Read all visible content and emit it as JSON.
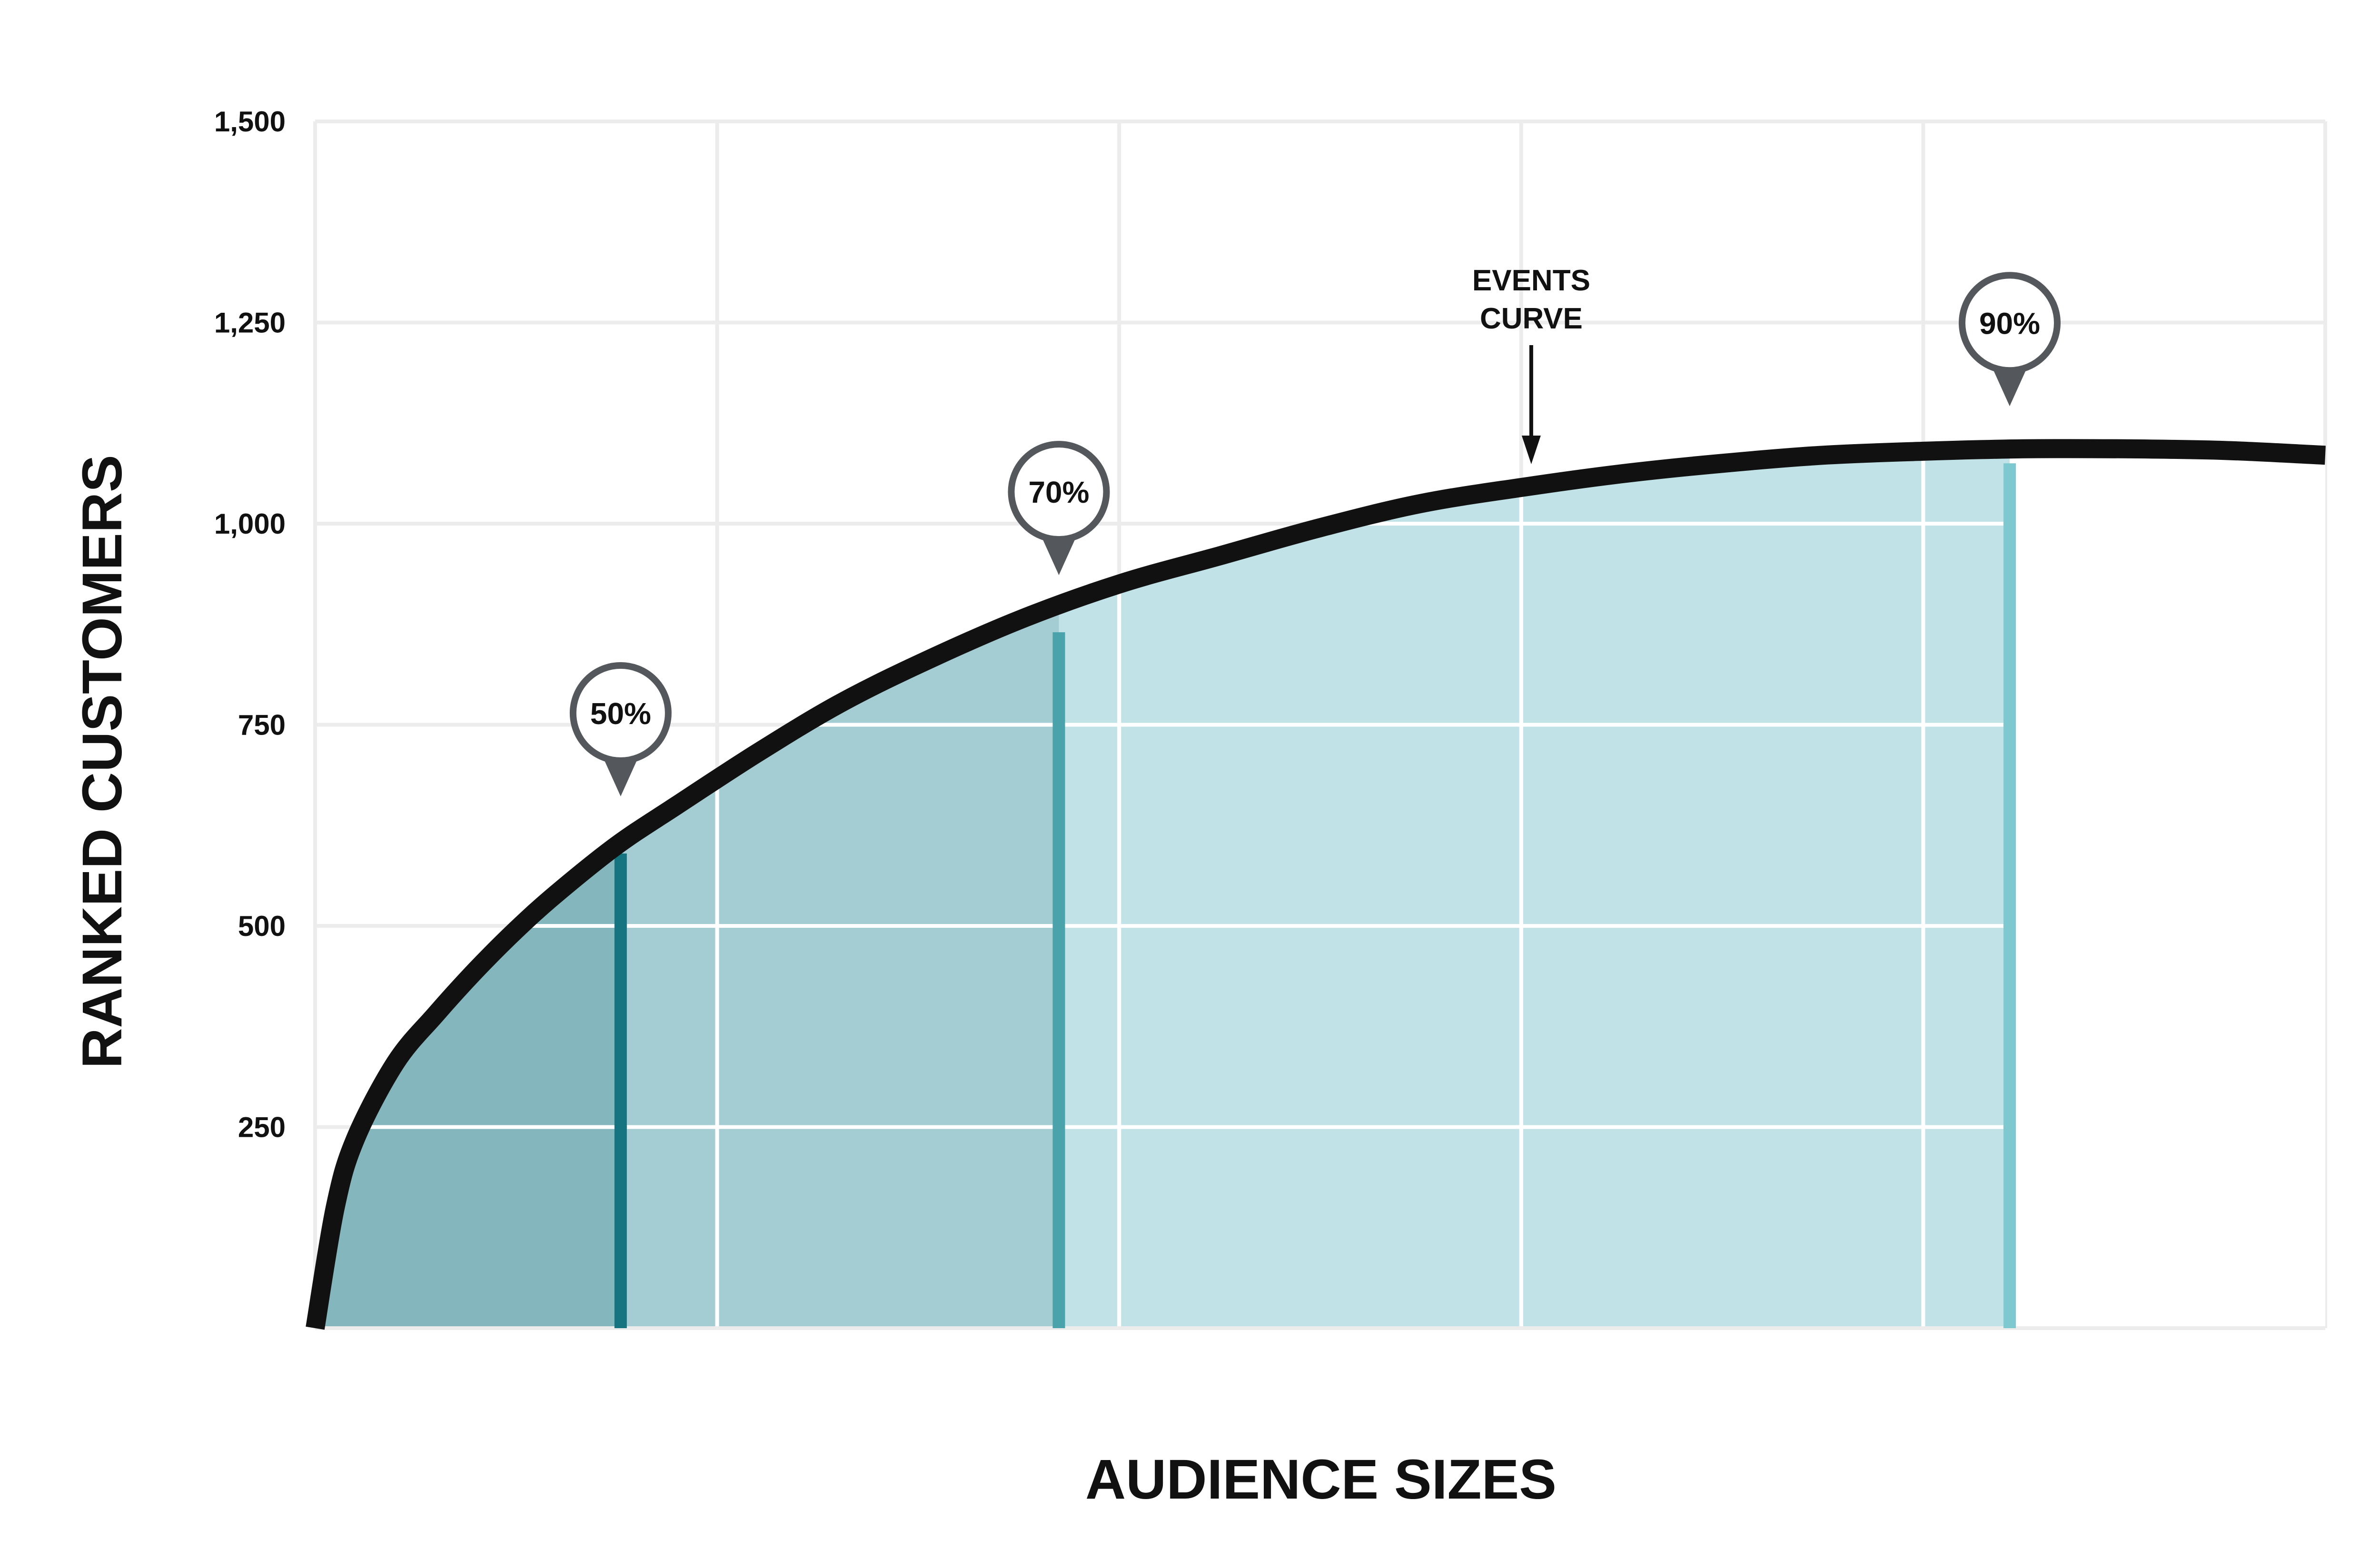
{
  "chart_data": {
    "type": "area",
    "xlabel": "AUDIENCE SIZES",
    "ylabel": "RANKED CUSTOMERS",
    "ylim": [
      0,
      1500
    ],
    "yticks": [
      250,
      500,
      750,
      1000,
      1250,
      1500
    ],
    "ytick_labels": [
      "250",
      "500",
      "750",
      "1,000",
      "1,250",
      "1,500"
    ],
    "xlim": [
      0,
      100
    ],
    "x_gridlines": [
      0,
      20,
      40,
      60,
      80,
      100
    ],
    "grid": true,
    "series": [
      {
        "x": [
          0,
          1,
          2,
          4,
          6,
          8,
          10,
          12,
          15,
          18,
          22,
          26,
          30,
          35,
          40,
          45,
          50,
          55,
          60,
          65,
          70,
          75,
          80,
          85,
          90,
          95,
          100
        ],
        "y": [
          0,
          150,
          235,
          330,
          390,
          445,
          495,
          540,
          600,
          650,
          715,
          775,
          825,
          880,
          925,
          960,
          995,
          1025,
          1045,
          1062,
          1075,
          1085,
          1090,
          1093,
          1093,
          1091,
          1085
        ]
      }
    ],
    "markers": [
      {
        "label": "50%",
        "x": 15.2,
        "y": 590,
        "color": "#167480"
      },
      {
        "label": "70%",
        "x": 37,
        "y": 865,
        "color": "#4aa2ab"
      },
      {
        "label": "90%",
        "x": 84.3,
        "y": 1075,
        "color": "#7ec8cf"
      }
    ],
    "bands": [
      {
        "from": 0,
        "to": 15.2,
        "color": "#84b7bd"
      },
      {
        "from": 15.2,
        "to": 37,
        "color": "#a3cdd3"
      },
      {
        "from": 37,
        "to": 84.3,
        "color": "#c1e3e8"
      }
    ],
    "annotation": {
      "lines": [
        "EVENTS",
        "CURVE"
      ],
      "x": 60.5
    }
  }
}
